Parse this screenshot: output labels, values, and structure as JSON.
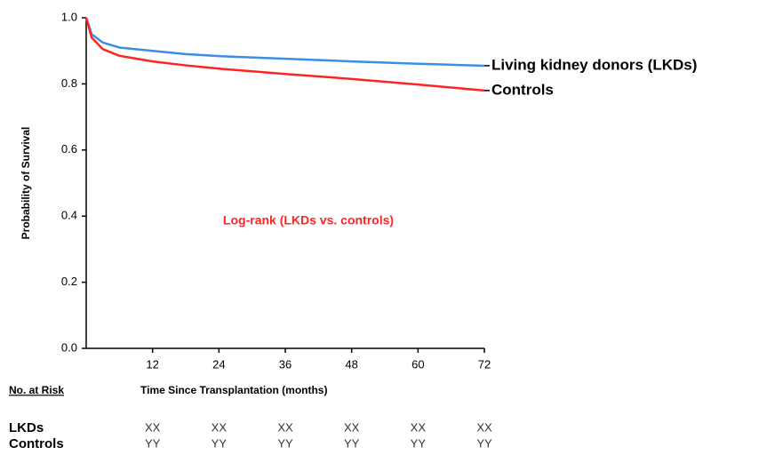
{
  "chart_data": {
    "type": "line",
    "x": [
      0,
      1,
      3,
      6,
      12,
      18,
      24,
      36,
      48,
      60,
      72
    ],
    "series": [
      {
        "name": "Living kidney donors (LKDs)",
        "color": "#3a8ee6",
        "values": [
          1.0,
          0.95,
          0.925,
          0.91,
          0.9,
          0.89,
          0.884,
          0.876,
          0.868,
          0.861,
          0.855
        ]
      },
      {
        "name": "Controls",
        "color": "#ff2424",
        "values": [
          1.0,
          0.94,
          0.905,
          0.885,
          0.868,
          0.856,
          0.846,
          0.83,
          0.815,
          0.798,
          0.78
        ]
      }
    ],
    "xlim": [
      0,
      72
    ],
    "ylim": [
      0,
      1
    ],
    "xticks": [
      12,
      24,
      36,
      48,
      60,
      72
    ],
    "yticks": [
      {
        "value": 0,
        "label": "0.0"
      },
      0.2,
      0.4,
      0.6,
      0.8,
      {
        "value": 1,
        "label": "1.0"
      }
    ],
    "ylabel": "Probability of Survival",
    "xlabel": "Time Since Transplantation (months)",
    "annotation": "Log-rank (LKDs vs. controls)",
    "risk_table": {
      "title": "No. at Risk",
      "rows": [
        {
          "name": "LKDs",
          "values": [
            "XX",
            "XX",
            "XX",
            "XX",
            "XX",
            "XX"
          ]
        },
        {
          "name": "Controls",
          "values": [
            "YY",
            "YY",
            "YY",
            "YY",
            "YY",
            "YY"
          ]
        }
      ]
    }
  }
}
